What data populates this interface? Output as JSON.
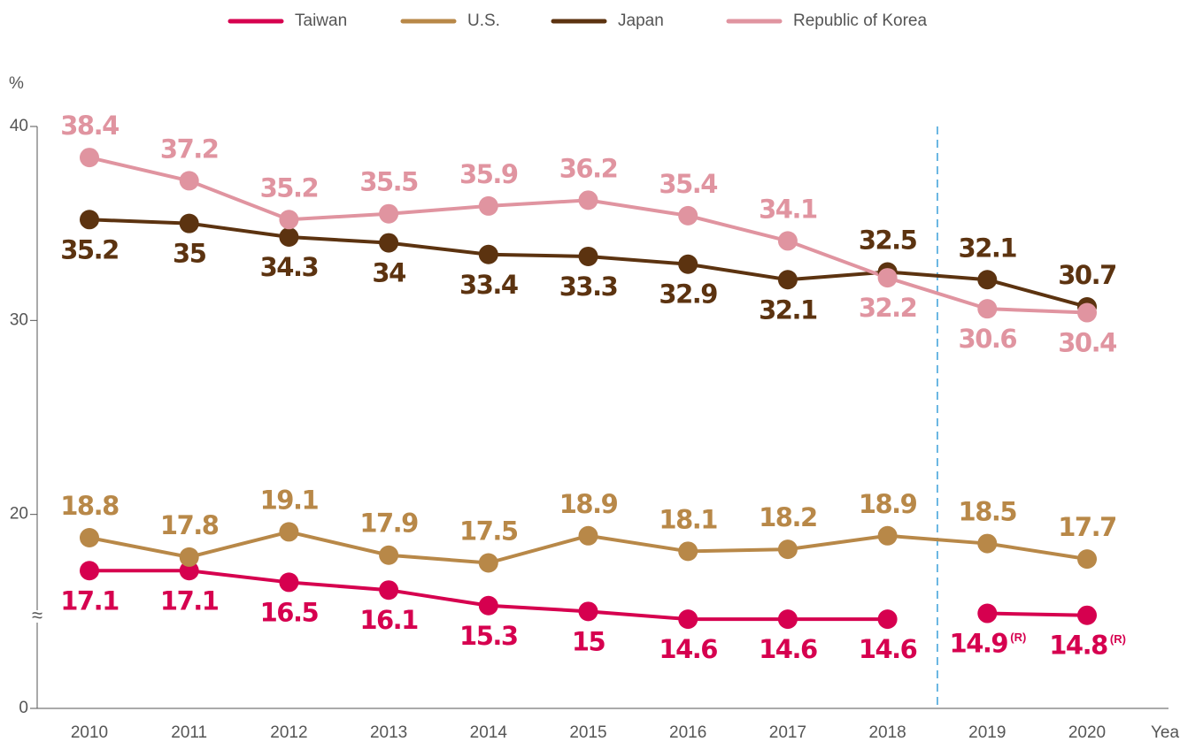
{
  "chart_data": {
    "type": "line",
    "categories": [
      "2010",
      "2011",
      "2012",
      "2013",
      "2014",
      "2015",
      "2016",
      "2017",
      "2018",
      "2019",
      "2020"
    ],
    "x_label": "Year",
    "y_label": "%",
    "ylim": [
      0,
      40
    ],
    "yticks": [
      0,
      20,
      30,
      40
    ],
    "axis_break": [
      0,
      10
    ],
    "break_symbol": "≈",
    "divider_after_index": 8,
    "divider_color": "#3aa0d8",
    "series": [
      {
        "name": "Taiwan",
        "color": "#d6004f",
        "break_at_divider": true,
        "values": [
          17.1,
          17.1,
          16.5,
          16.1,
          15.3,
          15.0,
          14.6,
          14.6,
          14.6,
          14.9,
          14.8
        ],
        "value_notes": [
          null,
          null,
          null,
          null,
          null,
          null,
          null,
          null,
          null,
          "(R)",
          "(R)"
        ]
      },
      {
        "name": "U.S.",
        "color": "#b88848",
        "values": [
          18.8,
          17.8,
          19.1,
          17.9,
          17.5,
          18.9,
          18.1,
          18.2,
          18.9,
          18.5,
          17.7
        ]
      },
      {
        "name": "Japan",
        "color": "#5c3310",
        "values": [
          35.2,
          35.0,
          34.3,
          34.0,
          33.4,
          33.3,
          32.9,
          32.1,
          32.5,
          32.1,
          30.7
        ]
      },
      {
        "name": "Republic of Korea",
        "color": "#e094a0",
        "values": [
          38.4,
          37.2,
          35.2,
          35.5,
          35.9,
          36.2,
          35.4,
          34.1,
          32.2,
          30.6,
          30.4
        ]
      }
    ]
  }
}
